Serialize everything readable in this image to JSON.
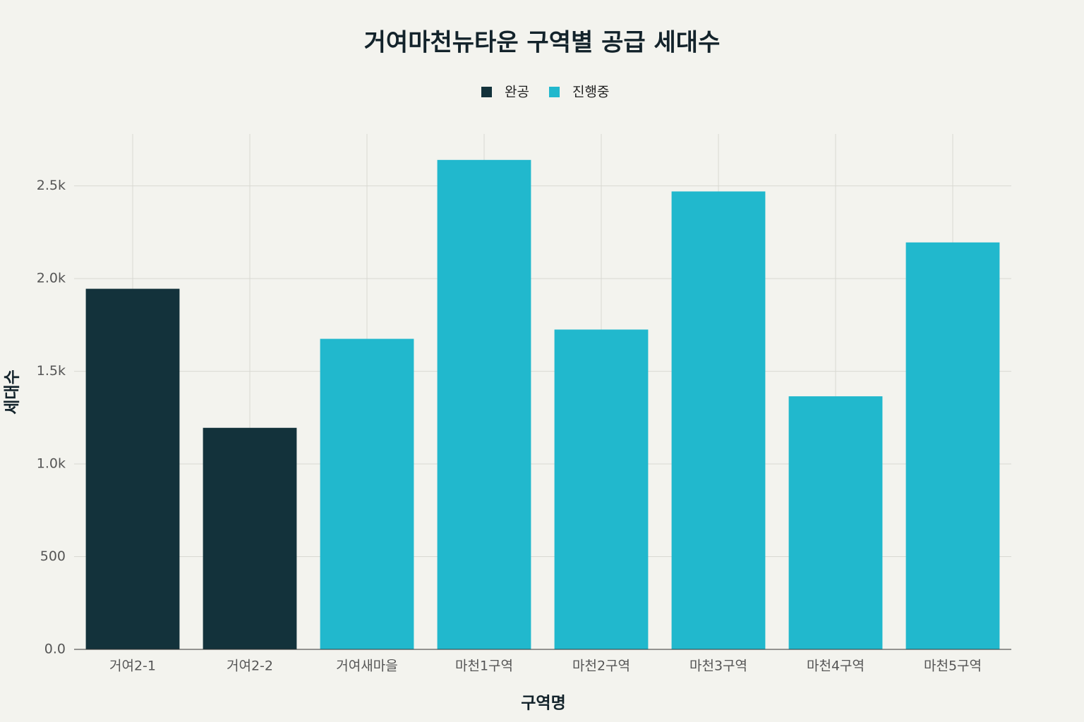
{
  "chart_data": {
    "type": "bar",
    "title": "거여마천뉴타운 구역별 공급 세대수",
    "x_label": "구역명",
    "y_label": "세대수",
    "categories": [
      "거여2-1",
      "거여2-2",
      "거여새마을",
      "마천1구역",
      "마천2구역",
      "마천3구역",
      "마천4구역",
      "마천5구역"
    ],
    "series": [
      {
        "name": "완공",
        "color": "#13323b",
        "values": [
          1945,
          1195,
          null,
          null,
          null,
          null,
          null,
          null
        ]
      },
      {
        "name": "진행중",
        "color": "#21b8cd",
        "values": [
          null,
          null,
          1675,
          2640,
          1725,
          2470,
          1365,
          2195
        ]
      }
    ],
    "ylim": [
      0,
      2780
    ],
    "yticks": [
      {
        "value": 0,
        "label": "0.0"
      },
      500,
      {
        "value": 1000,
        "label": "1.0k"
      },
      {
        "value": 1500,
        "label": "1.5k"
      },
      {
        "value": 2000,
        "label": "2.0k"
      },
      {
        "value": 2500,
        "label": "2.5k"
      }
    ],
    "grid": true,
    "legend": "top"
  }
}
